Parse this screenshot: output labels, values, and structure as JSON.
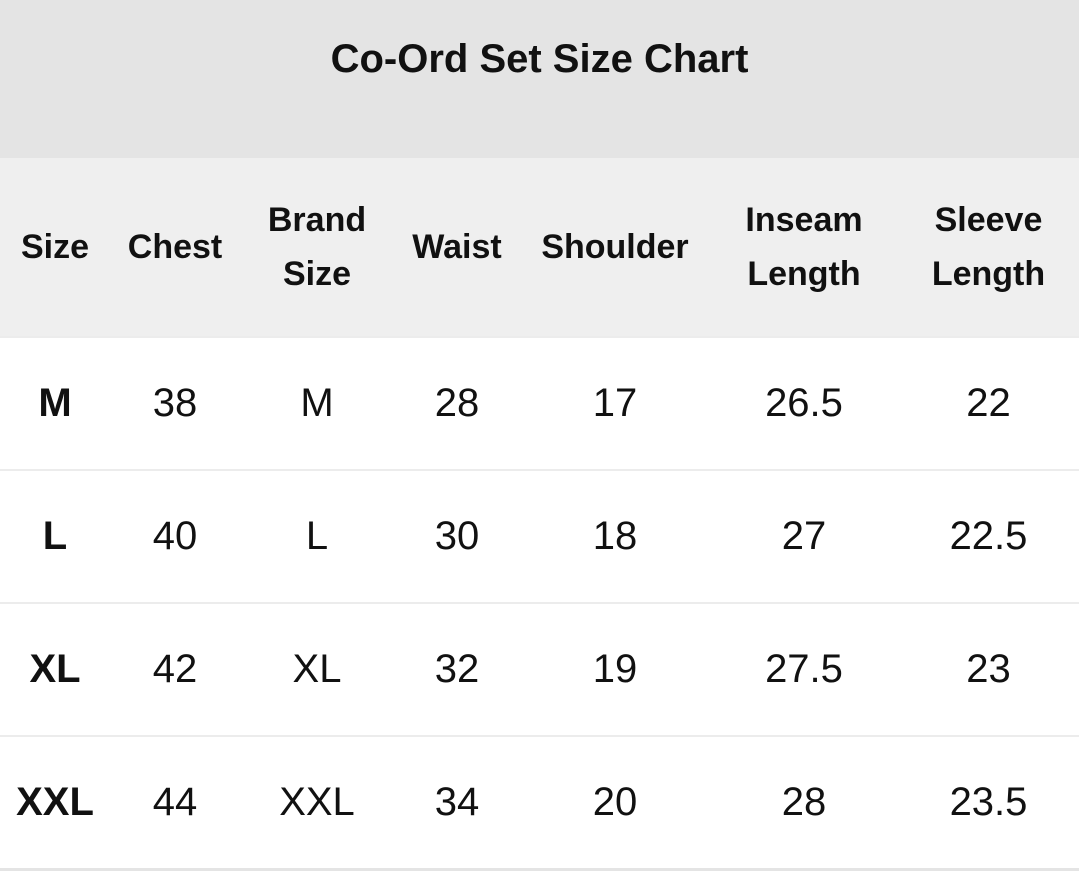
{
  "title": "Co-Ord Set Size Chart",
  "columns": [
    [
      "Size"
    ],
    [
      "Chest"
    ],
    [
      "Brand",
      "Size"
    ],
    [
      "Waist"
    ],
    [
      "Shoulder"
    ],
    [
      "Inseam",
      "Length"
    ],
    [
      "Sleeve",
      "Length"
    ]
  ],
  "rows": [
    [
      "M",
      "38",
      "M",
      "28",
      "17",
      "26.5",
      "22"
    ],
    [
      "L",
      "40",
      "L",
      "30",
      "18",
      "27",
      "22.5"
    ],
    [
      "XL",
      "42",
      "XL",
      "32",
      "19",
      "27.5",
      "23"
    ],
    [
      "XXL",
      "44",
      "XXL",
      "34",
      "20",
      "28",
      "23.5"
    ]
  ],
  "colors": {
    "title_bg": "#e4e4e4",
    "header_bg": "#efefef",
    "body_bg": "#ffffff"
  }
}
